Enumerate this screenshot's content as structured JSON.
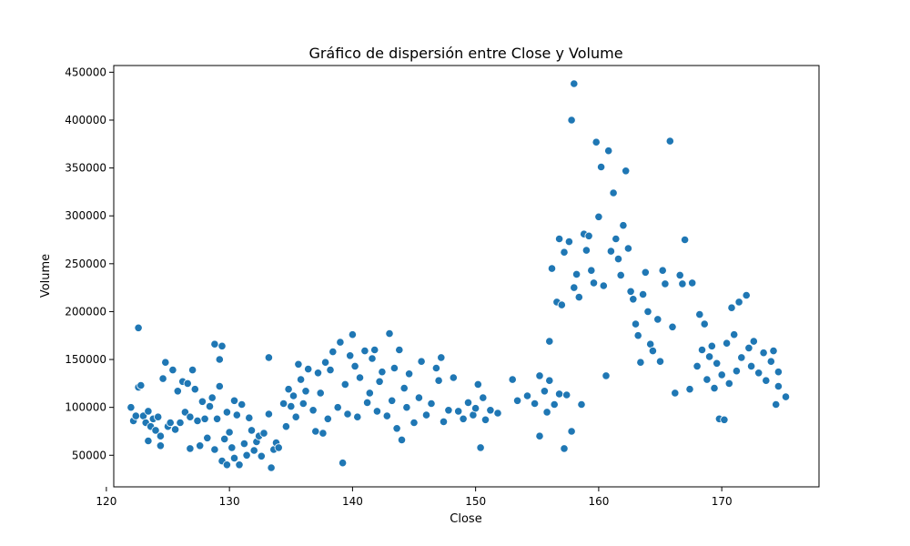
{
  "chart_data": {
    "type": "scatter",
    "title": "Gráfico de dispersión entre Close y Volume",
    "xlabel": "Close",
    "ylabel": "Volume",
    "xlim": [
      120.6,
      177.9
    ],
    "ylim": [
      17000,
      457000
    ],
    "xticks": [
      120,
      130,
      140,
      150,
      160,
      170
    ],
    "yticks": [
      50000,
      100000,
      150000,
      200000,
      250000,
      300000,
      350000,
      400000,
      450000
    ],
    "grid": false,
    "marker_color": "#1f77b4",
    "marker_edge_color": "#ffffff",
    "series": [
      {
        "points": [
          [
            122,
            100000
          ],
          [
            122.2,
            86000
          ],
          [
            122.4,
            91000
          ],
          [
            122.6,
            183000
          ],
          [
            122.6,
            121000
          ],
          [
            122.8,
            123000
          ],
          [
            123,
            91000
          ],
          [
            123.2,
            84000
          ],
          [
            123.4,
            96000
          ],
          [
            123.4,
            65000
          ],
          [
            123.6,
            80000
          ],
          [
            123.8,
            88000
          ],
          [
            124,
            76000
          ],
          [
            124.2,
            90000
          ],
          [
            124.4,
            70000
          ],
          [
            124.4,
            60000
          ],
          [
            124.6,
            130000
          ],
          [
            124.8,
            147000
          ],
          [
            125,
            80000
          ],
          [
            125.2,
            84000
          ],
          [
            125.4,
            139000
          ],
          [
            125.6,
            77000
          ],
          [
            125.8,
            117000
          ],
          [
            126,
            84000
          ],
          [
            126.2,
            127000
          ],
          [
            126.4,
            95000
          ],
          [
            126.6,
            125000
          ],
          [
            126.8,
            90000
          ],
          [
            126.8,
            57000
          ],
          [
            127,
            139000
          ],
          [
            127.2,
            119000
          ],
          [
            127.4,
            86000
          ],
          [
            127.6,
            60000
          ],
          [
            127.8,
            106000
          ],
          [
            128,
            88000
          ],
          [
            128.2,
            68000
          ],
          [
            128.4,
            101000
          ],
          [
            128.6,
            110000
          ],
          [
            128.8,
            166000
          ],
          [
            128.8,
            56000
          ],
          [
            129,
            88000
          ],
          [
            129.2,
            150000
          ],
          [
            129.2,
            122000
          ],
          [
            129.4,
            164000
          ],
          [
            129.4,
            44000
          ],
          [
            129.6,
            67000
          ],
          [
            129.8,
            95000
          ],
          [
            129.8,
            40000
          ],
          [
            130,
            74000
          ],
          [
            130.2,
            58000
          ],
          [
            130.4,
            107000
          ],
          [
            130.4,
            47000
          ],
          [
            130.6,
            92000
          ],
          [
            130.8,
            40000
          ],
          [
            131,
            103000
          ],
          [
            131.2,
            62000
          ],
          [
            131.4,
            50000
          ],
          [
            131.6,
            89000
          ],
          [
            131.8,
            76000
          ],
          [
            132,
            55000
          ],
          [
            132.2,
            64000
          ],
          [
            132.4,
            70000
          ],
          [
            132.6,
            49000
          ],
          [
            132.8,
            73000
          ],
          [
            133.2,
            93000
          ],
          [
            133.2,
            152000
          ],
          [
            133.4,
            37000
          ],
          [
            133.6,
            56000
          ],
          [
            133.8,
            63000
          ],
          [
            134,
            58000
          ],
          [
            134.4,
            104000
          ],
          [
            134.6,
            80000
          ],
          [
            134.8,
            119000
          ],
          [
            135,
            101000
          ],
          [
            135.2,
            112000
          ],
          [
            135.4,
            90000
          ],
          [
            135.6,
            145000
          ],
          [
            135.8,
            129000
          ],
          [
            136,
            104000
          ],
          [
            136.2,
            117000
          ],
          [
            136.4,
            140000
          ],
          [
            136.8,
            97000
          ],
          [
            137,
            75000
          ],
          [
            137.2,
            136000
          ],
          [
            137.4,
            115000
          ],
          [
            137.6,
            73000
          ],
          [
            137.8,
            147000
          ],
          [
            138,
            88000
          ],
          [
            138.2,
            139000
          ],
          [
            138.4,
            158000
          ],
          [
            138.8,
            100000
          ],
          [
            139,
            168000
          ],
          [
            139.2,
            42000
          ],
          [
            139.4,
            124000
          ],
          [
            139.6,
            93000
          ],
          [
            139.8,
            154000
          ],
          [
            140,
            176000
          ],
          [
            140.2,
            143000
          ],
          [
            140.4,
            90000
          ],
          [
            140.6,
            131000
          ],
          [
            141,
            159000
          ],
          [
            141.2,
            105000
          ],
          [
            141.4,
            115000
          ],
          [
            141.6,
            151000
          ],
          [
            141.8,
            160000
          ],
          [
            142,
            96000
          ],
          [
            142.2,
            127000
          ],
          [
            142.4,
            137000
          ],
          [
            142.8,
            91000
          ],
          [
            143,
            177000
          ],
          [
            143.2,
            107000
          ],
          [
            143.4,
            141000
          ],
          [
            143.6,
            78000
          ],
          [
            143.8,
            160000
          ],
          [
            144,
            66000
          ],
          [
            144.2,
            120000
          ],
          [
            144.4,
            100000
          ],
          [
            144.6,
            135000
          ],
          [
            145,
            84000
          ],
          [
            145.4,
            110000
          ],
          [
            145.6,
            148000
          ],
          [
            146,
            92000
          ],
          [
            146.4,
            104000
          ],
          [
            146.8,
            141000
          ],
          [
            147,
            128000
          ],
          [
            147.2,
            152000
          ],
          [
            147.4,
            85000
          ],
          [
            147.8,
            97000
          ],
          [
            148.2,
            131000
          ],
          [
            148.6,
            96000
          ],
          [
            149,
            88000
          ],
          [
            149.4,
            105000
          ],
          [
            149.8,
            92000
          ],
          [
            150,
            99000
          ],
          [
            150.2,
            124000
          ],
          [
            150.4,
            58000
          ],
          [
            150.6,
            110000
          ],
          [
            150.8,
            87000
          ],
          [
            151.2,
            97000
          ],
          [
            151.8,
            94000
          ],
          [
            153,
            129000
          ],
          [
            153.4,
            107000
          ],
          [
            154.2,
            112000
          ],
          [
            154.8,
            104000
          ],
          [
            155.2,
            70000
          ],
          [
            155.2,
            133000
          ],
          [
            155.6,
            117000
          ],
          [
            155.8,
            95000
          ],
          [
            156,
            128000
          ],
          [
            156,
            169000
          ],
          [
            156.2,
            245000
          ],
          [
            156.4,
            103000
          ],
          [
            156.6,
            210000
          ],
          [
            156.8,
            114000
          ],
          [
            156.8,
            276000
          ],
          [
            157,
            207000
          ],
          [
            157.2,
            262000
          ],
          [
            157.2,
            57000
          ],
          [
            157.4,
            113000
          ],
          [
            157.6,
            273000
          ],
          [
            157.8,
            400000
          ],
          [
            157.8,
            75000
          ],
          [
            158,
            438000
          ],
          [
            158,
            225000
          ],
          [
            158.2,
            239000
          ],
          [
            158.4,
            215000
          ],
          [
            158.6,
            103000
          ],
          [
            158.8,
            281000
          ],
          [
            159,
            264000
          ],
          [
            159.2,
            279000
          ],
          [
            159.4,
            243000
          ],
          [
            159.6,
            230000
          ],
          [
            159.8,
            377000
          ],
          [
            160,
            299000
          ],
          [
            160.2,
            351000
          ],
          [
            160.4,
            227000
          ],
          [
            160.6,
            133000
          ],
          [
            160.8,
            368000
          ],
          [
            161,
            263000
          ],
          [
            161.2,
            324000
          ],
          [
            161.4,
            276000
          ],
          [
            161.6,
            255000
          ],
          [
            161.8,
            238000
          ],
          [
            162,
            290000
          ],
          [
            162.2,
            347000
          ],
          [
            162.4,
            266000
          ],
          [
            162.6,
            221000
          ],
          [
            162.8,
            213000
          ],
          [
            163,
            187000
          ],
          [
            163.2,
            175000
          ],
          [
            163.4,
            147000
          ],
          [
            163.6,
            218000
          ],
          [
            163.8,
            241000
          ],
          [
            164,
            200000
          ],
          [
            164.2,
            166000
          ],
          [
            164.4,
            159000
          ],
          [
            164.8,
            192000
          ],
          [
            165,
            148000
          ],
          [
            165.2,
            243000
          ],
          [
            165.4,
            229000
          ],
          [
            165.8,
            378000
          ],
          [
            166,
            184000
          ],
          [
            166.2,
            115000
          ],
          [
            166.6,
            238000
          ],
          [
            166.8,
            229000
          ],
          [
            167,
            275000
          ],
          [
            167.4,
            119000
          ],
          [
            167.6,
            230000
          ],
          [
            168,
            143000
          ],
          [
            168.2,
            197000
          ],
          [
            168.4,
            160000
          ],
          [
            168.6,
            187000
          ],
          [
            168.8,
            129000
          ],
          [
            169,
            153000
          ],
          [
            169.2,
            164000
          ],
          [
            169.4,
            120000
          ],
          [
            169.6,
            146000
          ],
          [
            169.8,
            88000
          ],
          [
            170,
            134000
          ],
          [
            170.2,
            87000
          ],
          [
            170.4,
            167000
          ],
          [
            170.6,
            125000
          ],
          [
            170.8,
            204000
          ],
          [
            171,
            176000
          ],
          [
            171.2,
            138000
          ],
          [
            171.4,
            210000
          ],
          [
            171.6,
            152000
          ],
          [
            172,
            217000
          ],
          [
            172.2,
            162000
          ],
          [
            172.4,
            143000
          ],
          [
            172.6,
            169000
          ],
          [
            173,
            136000
          ],
          [
            173.4,
            157000
          ],
          [
            173.6,
            128000
          ],
          [
            174,
            148000
          ],
          [
            174.2,
            159000
          ],
          [
            174.4,
            103000
          ],
          [
            174.6,
            122000
          ],
          [
            174.6,
            137000
          ],
          [
            175.2,
            111000
          ]
        ]
      }
    ]
  }
}
